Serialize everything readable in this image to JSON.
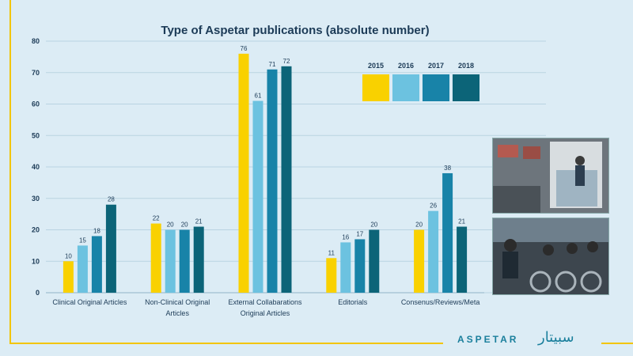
{
  "chart_data": {
    "type": "bar",
    "title": "Type of Aspetar publications (absolute number)",
    "categories": [
      [
        "Clinical Original Articles"
      ],
      [
        "Non-Clinical Original",
        "Articles"
      ],
      [
        "External Collabarations",
        "Original Articles"
      ],
      [
        "Editorials"
      ],
      [
        "Consenus/Reviews/Meta"
      ]
    ],
    "series": [
      {
        "name": "2015",
        "color": "#f9d100",
        "values": [
          10,
          22,
          76,
          11,
          20
        ]
      },
      {
        "name": "2016",
        "color": "#6cc2e0",
        "values": [
          15,
          20,
          61,
          16,
          26
        ]
      },
      {
        "name": "2017",
        "color": "#1883a8",
        "values": [
          18,
          20,
          71,
          17,
          38
        ]
      },
      {
        "name": "2018",
        "color": "#0c6478",
        "values": [
          28,
          21,
          72,
          20,
          21
        ]
      }
    ],
    "ylim": [
      0,
      80
    ],
    "yticks": [
      0,
      10,
      20,
      30,
      40,
      50,
      60,
      70,
      80
    ],
    "grid": true,
    "legend_placement": "top-right"
  },
  "branding": {
    "logo_text": "ASPETAR",
    "logo_arabic": "سبيتار"
  }
}
